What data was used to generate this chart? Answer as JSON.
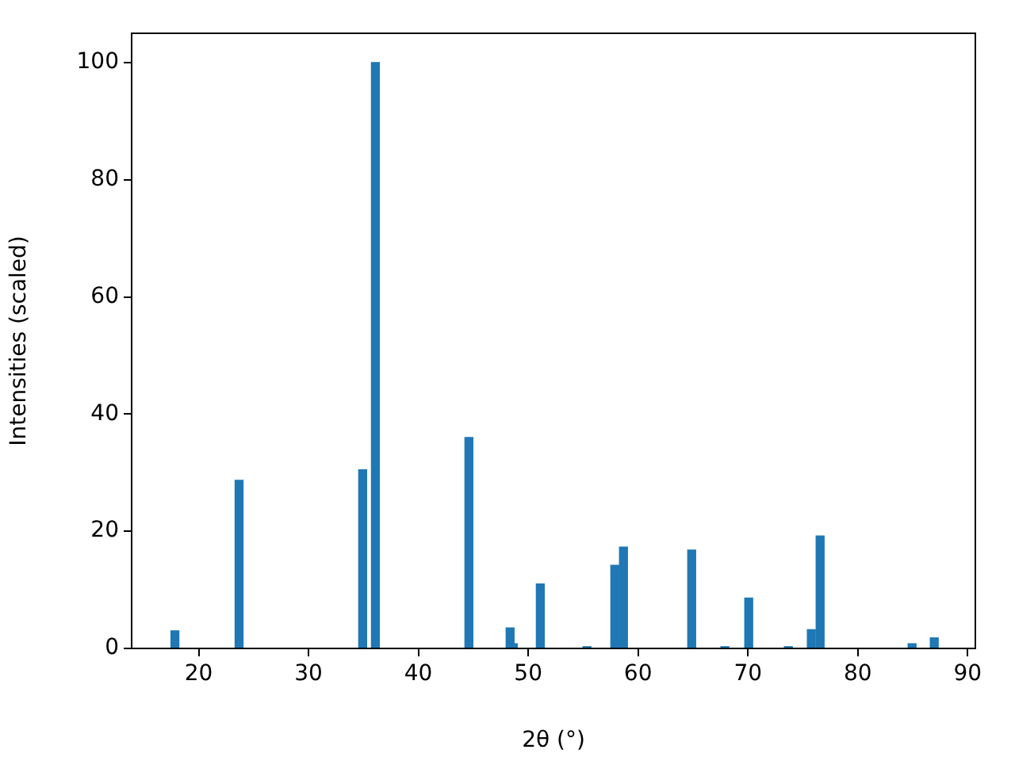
{
  "chart_data": {
    "type": "bar",
    "xlabel": "2θ (°)",
    "ylabel": "Intensities (scaled)",
    "x": [
      17.84,
      23.68,
      34.93,
      36.09,
      44.6,
      48.35,
      48.64,
      51.1,
      55.35,
      57.88,
      58.67,
      64.88,
      67.9,
      70.07,
      73.68,
      75.77,
      76.57,
      84.94,
      86.96
    ],
    "values": [
      3.0,
      28.7,
      30.5,
      100,
      36,
      3.5,
      0.8,
      11,
      0.3,
      14.2,
      17.3,
      16.8,
      0.3,
      8.6,
      0.3,
      3.2,
      19.2,
      0.8,
      1.8
    ],
    "color": "#1f77b4",
    "xlim": [
      13.9,
      90.7
    ],
    "xticks": [
      20,
      30,
      40,
      50,
      60,
      70,
      80,
      90
    ],
    "ylim": [
      0,
      105
    ],
    "yticks": [
      0,
      20,
      40,
      60,
      80,
      100
    ],
    "grid": false,
    "legend": false
  }
}
